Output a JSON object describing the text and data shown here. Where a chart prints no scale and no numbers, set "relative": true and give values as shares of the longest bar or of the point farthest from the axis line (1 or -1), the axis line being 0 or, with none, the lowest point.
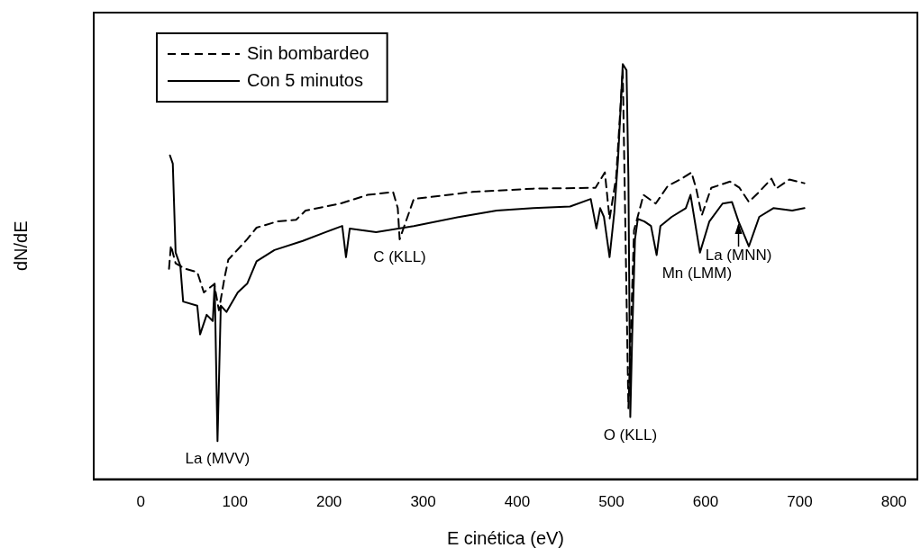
{
  "chart_data": {
    "type": "line",
    "xlabel": "E cinética (eV)",
    "ylabel": "dN/dE",
    "relative": true,
    "xlim": [
      -50,
      825
    ],
    "xticks": [
      0,
      100,
      200,
      300,
      400,
      500,
      600,
      700,
      800
    ],
    "legend": "top left",
    "grid": false,
    "marker": "none",
    "series": [
      {
        "name": "Sin bombardeo",
        "color": "#000000",
        "line_style": "dashed",
        "x": [
          30,
          32,
          37,
          47,
          60,
          67,
          78,
          83,
          89,
          93,
          113,
          123,
          145,
          165,
          175,
          212,
          241,
          268,
          273,
          275,
          290,
          352,
          417,
          483,
          493,
          498,
          505,
          512,
          518,
          524,
          529,
          534,
          547,
          560,
          573,
          585,
          590,
          596,
          606,
          626,
          636,
          646,
          656,
          670,
          675,
          689,
          705
        ],
        "values": [
          0.507,
          0.563,
          0.52,
          0.507,
          0.499,
          0.45,
          0.47,
          0.407,
          0.486,
          0.529,
          0.578,
          0.606,
          0.621,
          0.625,
          0.647,
          0.664,
          0.685,
          0.692,
          0.653,
          0.578,
          0.675,
          0.692,
          0.7,
          0.702,
          0.739,
          0.627,
          0.728,
          0.985,
          0.171,
          0.6,
          0.642,
          0.685,
          0.664,
          0.707,
          0.722,
          0.739,
          0.7,
          0.636,
          0.702,
          0.717,
          0.702,
          0.668,
          0.69,
          0.724,
          0.7,
          0.722,
          0.713
        ]
      },
      {
        "name": "Con 5 minutos",
        "color": "#000000",
        "line_style": "solid",
        "x": [
          31,
          34,
          37,
          42,
          45,
          60,
          63,
          70,
          76.5,
          78.5,
          81.5,
          85,
          91,
          103,
          113,
          123,
          142,
          172,
          196,
          214,
          218,
          222,
          250,
          290,
          339,
          378,
          417,
          456,
          478,
          484,
          488,
          492,
          498,
          503,
          507,
          512,
          516,
          518,
          520,
          522,
          525,
          528,
          535,
          542,
          548,
          552,
          564,
          579,
          584,
          594,
          604,
          618,
          628,
          635,
          646,
          657,
          672,
          692,
          705
        ],
        "values": [
          0.78,
          0.76,
          0.546,
          0.514,
          0.428,
          0.418,
          0.349,
          0.396,
          0.381,
          0.471,
          0.092,
          0.418,
          0.403,
          0.45,
          0.471,
          0.525,
          0.552,
          0.574,
          0.595,
          0.61,
          0.535,
          0.604,
          0.595,
          0.61,
          0.632,
          0.647,
          0.653,
          0.657,
          0.675,
          0.604,
          0.653,
          0.632,
          0.535,
          0.642,
          0.771,
          1,
          0.985,
          0.728,
          0.15,
          0.343,
          0.578,
          0.627,
          0.621,
          0.61,
          0.54,
          0.61,
          0.632,
          0.653,
          0.685,
          0.546,
          0.621,
          0.664,
          0.668,
          0.621,
          0.561,
          0.632,
          0.653,
          0.647,
          0.653
        ]
      }
    ],
    "annotations": [
      {
        "text": "La (MVV)",
        "x": 81.5,
        "y": 0.092
      },
      {
        "text": "C (KLL)",
        "x": 275,
        "y": 0.578
      },
      {
        "text": "O (KLL)",
        "x": 520,
        "y": 0.15
      },
      {
        "text": "Mn (LMM)",
        "x": 548,
        "y": 0.54
      },
      {
        "text": "La (MNN)",
        "x": 635,
        "y": 0.621
      }
    ]
  }
}
